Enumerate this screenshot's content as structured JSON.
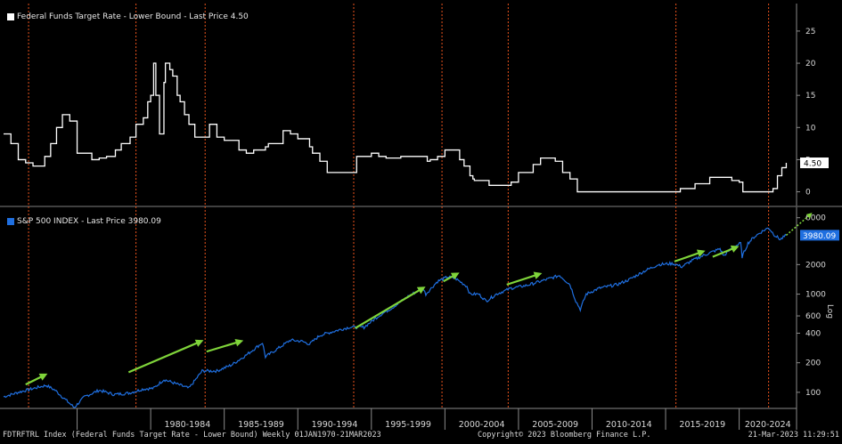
{
  "colors": {
    "background": "#000000",
    "rate_line": "#ffffff",
    "spx_line": "#1f6fe0",
    "arrow": "#7fd43a",
    "vline": "#e8531c",
    "axis": "#8a8a8a"
  },
  "chart_data": [
    {
      "type": "line",
      "legend": "Federal Funds Target Rate - Lower Bound - Last Price 4.50",
      "last_value_label": "4.50",
      "y_ticks": [
        "25",
        "20",
        "15",
        "10",
        "5",
        "0"
      ],
      "ylim": [
        -2,
        29
      ],
      "grid": false,
      "series": [
        {
          "name": "Federal Funds Target Rate - Lower Bound",
          "x": [
            1970,
            1970.5,
            1971,
            1971.5,
            1972,
            1972.8,
            1973.2,
            1973.6,
            1974,
            1974.5,
            1975,
            1975.5,
            1976,
            1976.5,
            1977,
            1977.6,
            1978,
            1978.6,
            1979,
            1979.5,
            1979.8,
            1980,
            1980.2,
            1980.35,
            1980.6,
            1980.9,
            1981,
            1981.3,
            1981.5,
            1981.8,
            1982,
            1982.3,
            1982.6,
            1983,
            1984,
            1984.5,
            1985,
            1986,
            1986.5,
            1987,
            1987.8,
            1988,
            1989,
            1989.5,
            1990,
            1990.8,
            1991,
            1991.5,
            1992,
            1993,
            1994,
            1995,
            1995.5,
            1996,
            1997,
            1998,
            1998.8,
            1999,
            1999.5,
            2000,
            2000.5,
            2001,
            2001.3,
            2001.7,
            2001.9,
            2002,
            2003,
            2004,
            2004.5,
            2005,
            2006,
            2006.5,
            2007,
            2007.5,
            2008,
            2008.5,
            2009,
            2015,
            2016,
            2017,
            2018,
            2019,
            2019.5,
            2020,
            2020.25,
            2021,
            2022,
            2022.3,
            2022.6,
            2022.9,
            2023.2
          ],
          "values": [
            9.0,
            7.5,
            5.0,
            4.5,
            4.0,
            5.5,
            7.5,
            10.0,
            12.0,
            11.0,
            6.0,
            6.0,
            5.0,
            5.25,
            5.5,
            6.5,
            7.5,
            8.5,
            10.5,
            11.5,
            14.0,
            15.0,
            20.0,
            15.0,
            9.0,
            17.0,
            20.0,
            19.0,
            18.0,
            15.0,
            14.0,
            12.0,
            10.5,
            8.5,
            10.5,
            8.5,
            8.0,
            6.5,
            6.0,
            6.5,
            7.0,
            7.5,
            9.5,
            9.0,
            8.25,
            7.0,
            6.0,
            4.75,
            3.0,
            3.0,
            5.5,
            6.0,
            5.5,
            5.25,
            5.5,
            5.5,
            4.75,
            5.0,
            5.5,
            6.5,
            6.5,
            5.0,
            4.0,
            2.5,
            2.0,
            1.75,
            1.0,
            1.0,
            1.5,
            3.0,
            4.25,
            5.25,
            5.25,
            4.75,
            3.0,
            2.0,
            0.0,
            0.0,
            0.5,
            1.25,
            2.25,
            2.25,
            1.75,
            1.5,
            0.0,
            0.0,
            0.0,
            0.5,
            2.5,
            3.75,
            4.5
          ]
        }
      ]
    },
    {
      "type": "line",
      "legend": "S&P 500 INDEX - Last Price 3980.09",
      "last_value_label": "3980.09",
      "y_ticks": [
        "6000",
        "2000",
        "1000",
        "600",
        "400",
        "200",
        "100"
      ],
      "y_tick_values": [
        6000,
        2000,
        1000,
        600,
        400,
        200,
        100
      ],
      "ylim": [
        70,
        7500
      ],
      "yscale": "log",
      "yaxis_label": "Log",
      "x_ticks": [
        "1980-1984",
        "1985-1989",
        "1990-1994",
        "1995-1999",
        "2000-2004",
        "2005-2009",
        "2010-2014",
        "2015-2019",
        "2020-2024"
      ],
      "series": [
        {
          "name": "S&P 500 INDEX",
          "x": [
            1970,
            1971,
            1972.9,
            1973.5,
            1974.8,
            1975.5,
            1976.5,
            1977.5,
            1978.5,
            1979.5,
            1980.2,
            1980.9,
            1982.6,
            1983.5,
            1984.5,
            1985.5,
            1986.5,
            1987.6,
            1987.8,
            1988.5,
            1989.5,
            1990.3,
            1990.8,
            1991.5,
            1992.5,
            1993.5,
            1994.5,
            1995.5,
            1996.5,
            1997.5,
            1998.5,
            1998.7,
            1999.5,
            2000.2,
            2000.7,
            2001.5,
            2001.7,
            2002.3,
            2002.8,
            2003.5,
            2004.5,
            2005.5,
            2006.5,
            2007.8,
            2008.5,
            2008.9,
            2009.2,
            2009.6,
            2010.5,
            2011.7,
            2012.5,
            2013.5,
            2014.5,
            2015.5,
            2016.1,
            2016.8,
            2017.5,
            2018.7,
            2018.95,
            2019.5,
            2020.1,
            2020.2,
            2020.6,
            2021,
            2021.5,
            2022,
            2022.4,
            2022.8,
            2023.2
          ],
          "values": [
            90,
            100,
            118,
            105,
            70,
            90,
            105,
            95,
            98,
            108,
            110,
            135,
            110,
            165,
            165,
            190,
            240,
            320,
            230,
            270,
            340,
            330,
            310,
            380,
            420,
            460,
            460,
            600,
            740,
            950,
            1150,
            1000,
            1350,
            1500,
            1450,
            1200,
            1000,
            1000,
            850,
            1000,
            1150,
            1220,
            1350,
            1550,
            1250,
            850,
            700,
            1000,
            1150,
            1250,
            1400,
            1700,
            2000,
            2050,
            1900,
            2200,
            2450,
            2900,
            2450,
            2950,
            3300,
            2400,
            3300,
            3800,
            4300,
            4750,
            4000,
            3600,
            3980
          ]
        }
      ],
      "annotations": "green arrows over rate-hiking cycles; dotted green projection arrow after last price"
    }
  ],
  "footer": {
    "left": "FDTRFTRL Index (Federal Funds Target Rate - Lower Bound)  Weekly 01JAN1970-21MAR2023",
    "center": "Copyright© 2023 Bloomberg Finance L.P.",
    "right": "21-Mar-2023 11:29:51"
  }
}
